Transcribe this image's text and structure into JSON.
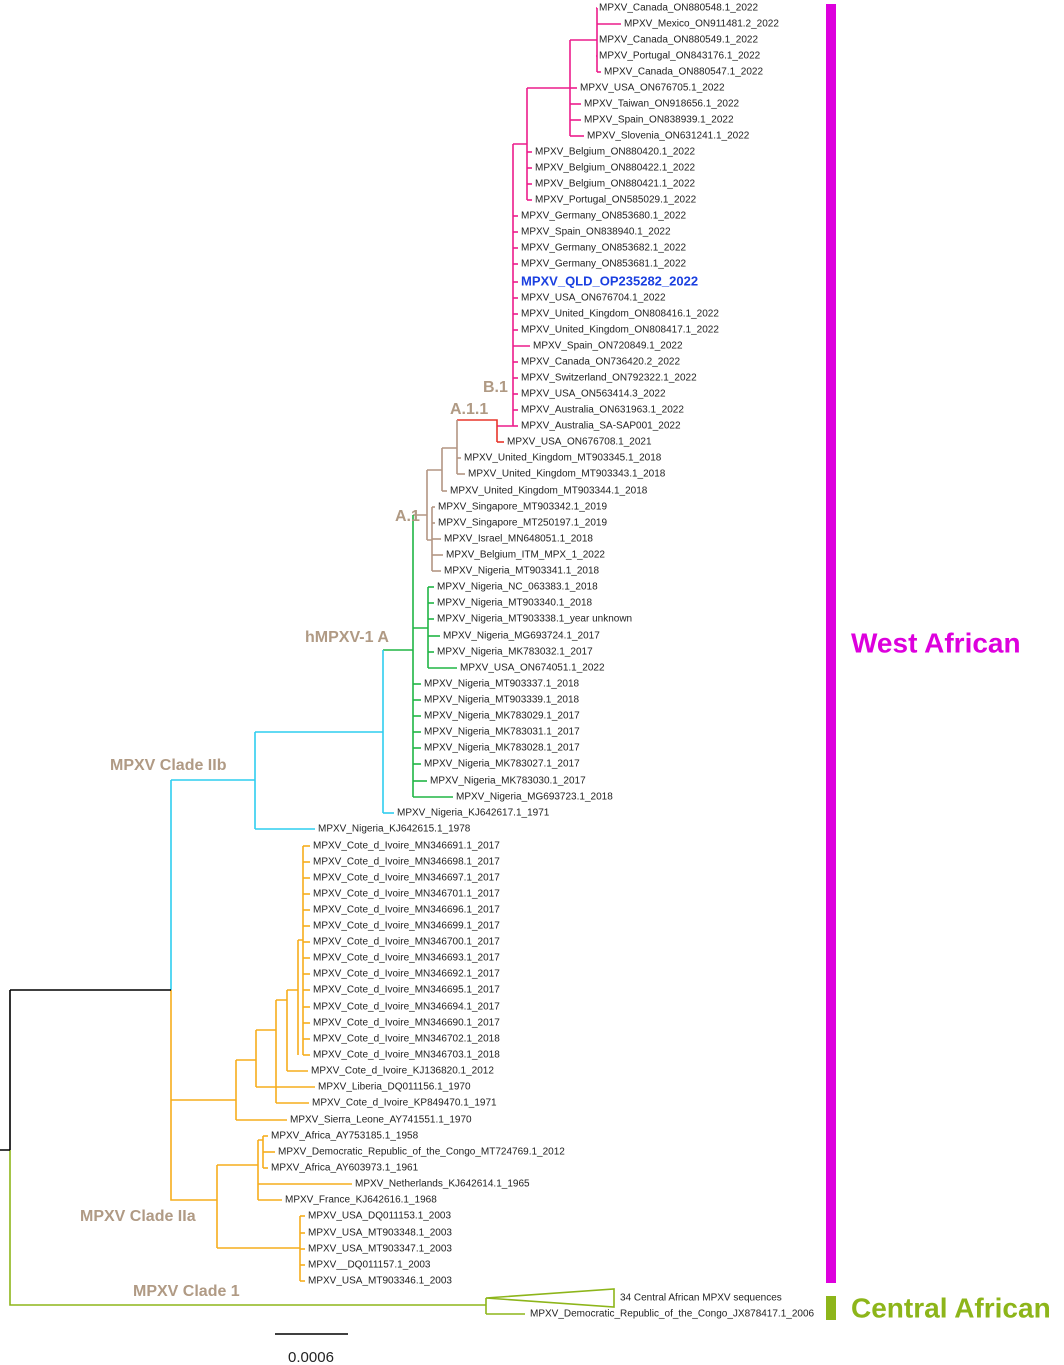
{
  "tree": {
    "leaves": [
      "MPXV_Canada_ON880548.1_2022",
      "MPXV_Mexico_ON911481.2_2022",
      "MPXV_Canada_ON880549.1_2022",
      "MPXV_Portugal_ON843176.1_2022",
      "MPXV_Canada_ON880547.1_2022",
      "MPXV_USA_ON676705.1_2022",
      "MPXV_Taiwan_ON918656.1_2022",
      "MPXV_Spain_ON838939.1_2022",
      "MPXV_Slovenia_ON631241.1_2022",
      "MPXV_Belgium_ON880420.1_2022",
      "MPXV_Belgium_ON880422.1_2022",
      "MPXV_Belgium_ON880421.1_2022",
      "MPXV_Portugal_ON585029.1_2022",
      "MPXV_Germany_ON853680.1_2022",
      "MPXV_Spain_ON838940.1_2022",
      "MPXV_Germany_ON853682.1_2022",
      "MPXV_Germany_ON853681.1_2022",
      "MPXV_QLD_OP235282_2022",
      "MPXV_USA_ON676704.1_2022",
      "MPXV_United_Kingdom_ON808416.1_2022",
      "MPXV_United_Kingdom_ON808417.1_2022",
      "MPXV_Spain_ON720849.1_2022",
      "MPXV_Canada_ON736420.2_2022",
      "MPXV_Switzerland_ON792322.1_2022",
      "MPXV_USA_ON563414.3_2022",
      "MPXV_Australia_ON631963.1_2022",
      "MPXV_Australia_SA-SAP001_2022",
      "MPXV_USA_ON676708.1_2021",
      "MPXV_United_Kingdom_MT903345.1_2018",
      "MPXV_United_Kingdom_MT903343.1_2018",
      "MPXV_United_Kingdom_MT903344.1_2018",
      "MPXV_Singapore_MT903342.1_2019",
      "MPXV_Singapore_MT250197.1_2019",
      "MPXV_Israel_MN648051.1_2018",
      "MPXV_Belgium_ITM_MPX_1_2022",
      "MPXV_Nigeria_MT903341.1_2018",
      "MPXV_Nigeria_NC_063383.1_2018",
      "MPXV_Nigeria_MT903340.1_2018",
      "MPXV_Nigeria_MT903338.1_year unknown",
      "MPXV_Nigeria_MG693724.1_2017",
      "MPXV_Nigeria_MK783032.1_2017",
      "MPXV_USA_ON674051.1_2022",
      "MPXV_Nigeria_MT903337.1_2018",
      "MPXV_Nigeria_MT903339.1_2018",
      "MPXV_Nigeria_MK783029.1_2017",
      "MPXV_Nigeria_MK783031.1_2017",
      "MPXV_Nigeria_MK783028.1_2017",
      "MPXV_Nigeria_MK783027.1_2017",
      "MPXV_Nigeria_MK783030.1_2017",
      "MPXV_Nigeria_MG693723.1_2018",
      "MPXV_Nigeria_KJ642617.1_1971",
      "MPXV_Nigeria_KJ642615.1_1978",
      "MPXV_Cote_d_Ivoire_MN346691.1_2017",
      "MPXV_Cote_d_Ivoire_MN346698.1_2017",
      "MPXV_Cote_d_Ivoire_MN346697.1_2017",
      "MPXV_Cote_d_Ivoire_MN346701.1_2017",
      "MPXV_Cote_d_Ivoire_MN346696.1_2017",
      "MPXV_Cote_d_Ivoire_MN346699.1_2017",
      "MPXV_Cote_d_Ivoire_MN346700.1_2017",
      "MPXV_Cote_d_Ivoire_MN346693.1_2017",
      "MPXV_Cote_d_Ivoire_MN346692.1_2017",
      "MPXV_Cote_d_Ivoire_MN346695.1_2017",
      "MPXV_Cote_d_Ivoire_MN346694.1_2017",
      "MPXV_Cote_d_Ivoire_MN346690.1_2017",
      "MPXV_Cote_d_Ivoire_MN346702.1_2018",
      "MPXV_Cote_d_Ivoire_MN346703.1_2018",
      "MPXV_Cote_d_Ivoire_KJ136820.1_2012",
      "MPXV_Liberia_DQ011156.1_1970",
      "MPXV_Cote_d_Ivoire_KP849470.1_1971",
      "MPXV_Sierra_Leone_AY741551.1_1970",
      "MPXV_Africa_AY753185.1_1958",
      "MPXV_Democratic_Republic_of_the_Congo_MT724769.1_2012",
      "MPXV_Africa_AY603973.1_1961",
      "MPXV_Netherlands_KJ642614.1_1965",
      "MPXV_France_KJ642616.1_1968",
      "MPXV_USA_DQ011153.1_2003",
      "MPXV_USA_MT903348.1_2003",
      "MPXV_USA_MT903347.1_2003",
      "MPXV__DQ011157.1_2003",
      "MPXV_USA_MT903346.1_2003"
    ],
    "collapsed": [
      "34 Central African MPXV sequences",
      "MPXV_Democratic_Republic_of_the_Congo_JX878417.1_2006"
    ],
    "clade_labels": [
      "B.1",
      "A.1.1",
      "A.1",
      "hMPXV-1 A",
      "MPXV Clade IIb",
      "MPXV Clade IIa",
      "MPXV Clade 1"
    ],
    "regions": [
      "West African",
      "Central African"
    ],
    "scale_bar": "0.0006"
  }
}
